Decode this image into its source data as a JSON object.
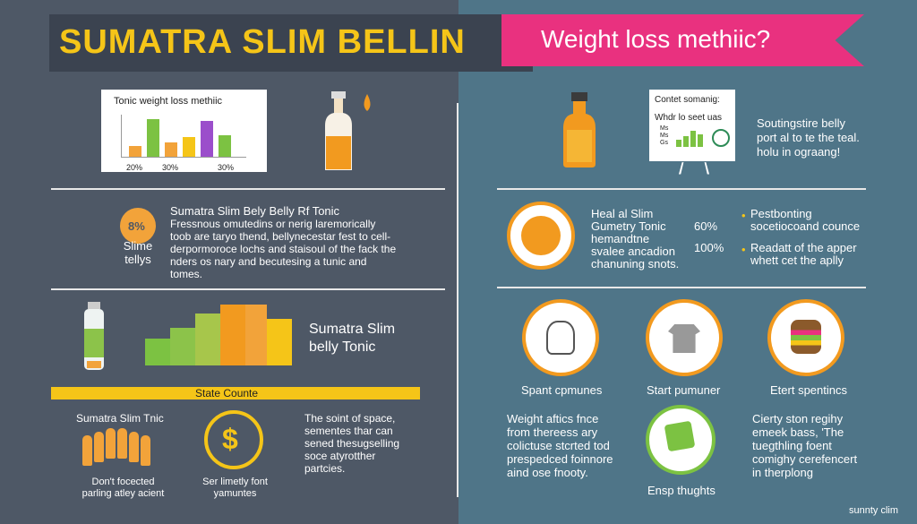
{
  "header": {
    "title": "SUMATRA SLIM BELLIN",
    "subtitle": "Weight loss methiic?"
  },
  "chart_panel": {
    "title": "Tonic weight loss methiic",
    "ticks": [
      "20%",
      "30%",
      "30%"
    ]
  },
  "tonic_section": {
    "badge": "8%",
    "badge_caption": "Slime tellys",
    "title": "Sumatra Slim Bely Belly Rf Tonic",
    "body": "Fressnous omutedins or nerig laremorically toob are taryo thend, bellynecestar fest to cell-derpormoroce lochs and staisoul of the fack the nders os nary and becutesing a tunic and tomes."
  },
  "product_section": {
    "title": "Sumatra Slim belly Tonic"
  },
  "stats_bar": {
    "label": "State Counte"
  },
  "bottom_left": {
    "people_title": "Sumatra Slim Tnic",
    "people_caption": "Don't focected parling atley acient",
    "coin_caption": "Ser limetly font yamuntes",
    "coin_symbol": "$",
    "right_text": "The soint of space, sementes thar can sened thesugselling soce atyrotther partcies."
  },
  "right_top": {
    "card_title": "Contet somanig:",
    "card_sub": "Whdr lo seet uas",
    "card_lines": [
      "Ms",
      "Ms",
      "Gs"
    ],
    "side_text": "Soutingstire belly port al to te the teal. holu in ograang!"
  },
  "right_mid": {
    "lines": [
      "Heal al Slim",
      "Gumetry Tonic",
      "hemandtne",
      "svalee ancadion",
      "chanuning snots."
    ],
    "pcts": [
      "60%",
      "100%"
    ],
    "bullets": [
      "Pestbonting",
      "socetiocoand counce",
      "Readatt of the apper",
      "whett cet the aplly"
    ]
  },
  "icons_row": {
    "labels": [
      "Spant cpmunes",
      "Start pumuner",
      "Etert spentincs"
    ]
  },
  "right_bottom": {
    "left_text": "Weight aftics fnce from thereess ary colictuse stcrted tod prespedced foinnore aind ose fnooty.",
    "center_caption": "Ensp thughts",
    "right_text": "Cierty ston regihy emeek bass, 'The tuegthling foent comighy cerefencert in therplong",
    "logo": "sunnty clim"
  },
  "colors": {
    "accent": "#f5c518",
    "pink": "#e9317f",
    "orange": "#f2a33a",
    "green": "#7cc242",
    "purple": "#9b4ecb"
  }
}
